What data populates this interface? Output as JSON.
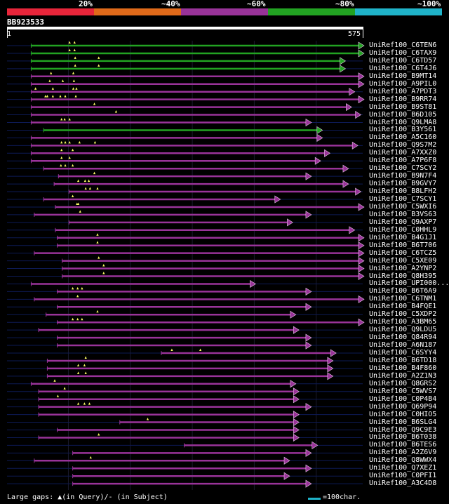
{
  "legend": {
    "colors": [
      "#e8253a",
      "#e06a1a",
      "#993399",
      "#22a322",
      "#1fb3c9"
    ],
    "labels": [
      "20%",
      "~40%",
      "~60%",
      "~80%",
      "~100%"
    ]
  },
  "query": {
    "name": "BB923533",
    "start": "1",
    "end": "575"
  },
  "footer": {
    "gaps_text": "Large gaps: ▲(in Query)/- (in Subject)",
    "scale_text": "=100char."
  },
  "hits": [
    {
      "name": "UniRef100_C6TEN6",
      "color": "green",
      "color_hex": "#22a322",
      "start": 40,
      "end": 575,
      "q_gaps": [
        102,
        110
      ]
    },
    {
      "name": "UniRef100_C6TAX9",
      "color": "green",
      "color_hex": "#22a322",
      "start": 40,
      "end": 575,
      "q_gaps": [
        102,
        110
      ]
    },
    {
      "name": "UniRef100_C6TD57",
      "color": "green",
      "color_hex": "#22a322",
      "start": 40,
      "end": 545,
      "q_gaps": [
        111,
        149
      ]
    },
    {
      "name": "UniRef100_C6T4J6",
      "color": "green",
      "color_hex": "#22a322",
      "start": 40,
      "end": 545,
      "q_gaps": [
        111,
        149
      ]
    },
    {
      "name": "UniRef100_B9MT14",
      "color": "purple",
      "color_hex": "#993399",
      "start": 40,
      "end": 575,
      "q_gaps": [
        72,
        108
      ]
    },
    {
      "name": "UniRef100_A9PIL0",
      "color": "purple",
      "color_hex": "#993399",
      "start": 40,
      "end": 575,
      "q_gaps": [
        70,
        91,
        109
      ]
    },
    {
      "name": "UniRef100_A7PDT3",
      "color": "purple",
      "color_hex": "#993399",
      "start": 40,
      "end": 560,
      "q_gaps": [
        47,
        75,
        108,
        113
      ]
    },
    {
      "name": "UniRef100_B9RR74",
      "color": "purple",
      "color_hex": "#993399",
      "start": 40,
      "end": 575,
      "q_gaps": [
        63,
        66,
        75,
        87,
        95,
        112
      ]
    },
    {
      "name": "UniRef100_B9ST81",
      "color": "purple",
      "color_hex": "#993399",
      "start": 40,
      "end": 555,
      "q_gaps": [
        142
      ]
    },
    {
      "name": "UniRef100_B6D105",
      "color": "purple",
      "color_hex": "#993399",
      "start": 40,
      "end": 570,
      "q_gaps": [
        177
      ]
    },
    {
      "name": "UniRef100_Q9LMA8",
      "color": "purple",
      "color_hex": "#993399",
      "start": 40,
      "end": 490,
      "q_gaps": [
        89,
        94,
        102
      ]
    },
    {
      "name": "UniRef100_B3Y561",
      "color": "green",
      "color_hex": "#22a322",
      "start": 60,
      "end": 508,
      "q_gaps": []
    },
    {
      "name": "UniRef100_A5C160",
      "color": "purple",
      "color_hex": "#993399",
      "start": 40,
      "end": 508,
      "q_gaps": []
    },
    {
      "name": "UniRef100_Q9S7M2",
      "color": "purple",
      "color_hex": "#993399",
      "start": 40,
      "end": 565,
      "q_gaps": [
        89,
        95,
        102,
        118,
        143
      ]
    },
    {
      "name": "UniRef100_A7XXZ0",
      "color": "purple",
      "color_hex": "#993399",
      "start": 40,
      "end": 520,
      "q_gaps": [
        89,
        107
      ]
    },
    {
      "name": "UniRef100_A7P6F8",
      "color": "purple",
      "color_hex": "#993399",
      "start": 40,
      "end": 505,
      "q_gaps": [
        89,
        102
      ]
    },
    {
      "name": "UniRef100_C7SCY2",
      "color": "purple",
      "color_hex": "#993399",
      "start": 60,
      "end": 550,
      "q_gaps": [
        88,
        95,
        107
      ]
    },
    {
      "name": "UniRef100_B9N7F4",
      "color": "purple",
      "color_hex": "#993399",
      "start": 84,
      "end": 490,
      "q_gaps": [
        142
      ]
    },
    {
      "name": "UniRef100_B9GVY7",
      "color": "purple",
      "color_hex": "#993399",
      "start": 77,
      "end": 550,
      "q_gaps": [
        116,
        127,
        133
      ]
    },
    {
      "name": "UniRef100_B8LFH2",
      "color": "purple",
      "color_hex": "#993399",
      "start": 101,
      "end": 570,
      "q_gaps": [
        128,
        135,
        147
      ]
    },
    {
      "name": "UniRef100_C7SCY1",
      "color": "purple",
      "color_hex": "#993399",
      "start": 60,
      "end": 440,
      "q_gaps": [
        107
      ]
    },
    {
      "name": "UniRef100_C5WXI6",
      "color": "purple",
      "color_hex": "#993399",
      "start": 79,
      "end": 575,
      "q_gaps": [
        114,
        116
      ]
    },
    {
      "name": "UniRef100_B3VS63",
      "color": "purple",
      "color_hex": "#993399",
      "start": 45,
      "end": 490,
      "q_gaps": [
        119
      ]
    },
    {
      "name": "UniRef100_Q9AXP7",
      "color": "purple",
      "color_hex": "#993399",
      "start": 101,
      "end": 460,
      "q_gaps": []
    },
    {
      "name": "UniRef100_C0HHL9",
      "color": "purple",
      "color_hex": "#993399",
      "start": 79,
      "end": 560,
      "q_gaps": []
    },
    {
      "name": "UniRef100_B4G1J1",
      "color": "purple",
      "color_hex": "#993399",
      "start": 82,
      "end": 575,
      "q_gaps": [
        147
      ]
    },
    {
      "name": "UniRef100_B6T706",
      "color": "purple",
      "color_hex": "#993399",
      "start": 82,
      "end": 575,
      "q_gaps": [
        147
      ]
    },
    {
      "name": "UniRef100_C6TCZ5",
      "color": "purple",
      "color_hex": "#993399",
      "start": 45,
      "end": 575,
      "q_gaps": []
    },
    {
      "name": "UniRef100_C5XE09",
      "color": "purple",
      "color_hex": "#993399",
      "start": 90,
      "end": 575,
      "q_gaps": [
        149
      ]
    },
    {
      "name": "UniRef100_A2YNP2",
      "color": "purple",
      "color_hex": "#993399",
      "start": 90,
      "end": 575,
      "q_gaps": [
        157
      ]
    },
    {
      "name": "UniRef100_Q8H395",
      "color": "purple",
      "color_hex": "#993399",
      "start": 90,
      "end": 575,
      "q_gaps": [
        157
      ]
    },
    {
      "name": "UniRef100_UPI000...",
      "color": "purple",
      "color_hex": "#993399",
      "start": 40,
      "end": 400,
      "q_gaps": []
    },
    {
      "name": "UniRef100_B6T6A9",
      "color": "purple",
      "color_hex": "#993399",
      "start": 82,
      "end": 490,
      "q_gaps": [
        107,
        115,
        122
      ]
    },
    {
      "name": "UniRef100_C6TNM1",
      "color": "purple",
      "color_hex": "#993399",
      "start": 45,
      "end": 575,
      "q_gaps": [
        115
      ]
    },
    {
      "name": "UniRef100_B4FQE1",
      "color": "purple",
      "color_hex": "#993399",
      "start": 82,
      "end": 490,
      "q_gaps": []
    },
    {
      "name": "UniRef100_C5XDP2",
      "color": "purple",
      "color_hex": "#993399",
      "start": 64,
      "end": 465,
      "q_gaps": [
        147
      ]
    },
    {
      "name": "UniRef100_A3BM65",
      "color": "purple",
      "color_hex": "#993399",
      "start": 82,
      "end": 575,
      "q_gaps": [
        107,
        115,
        122
      ]
    },
    {
      "name": "UniRef100_Q9LDU5",
      "color": "purple",
      "color_hex": "#993399",
      "start": 52,
      "end": 470,
      "q_gaps": []
    },
    {
      "name": "UniRef100_Q84R94",
      "color": "purple",
      "color_hex": "#993399",
      "start": 82,
      "end": 490,
      "q_gaps": []
    },
    {
      "name": "UniRef100_A6N187",
      "color": "purple",
      "color_hex": "#993399",
      "start": 82,
      "end": 490,
      "q_gaps": []
    },
    {
      "name": "UniRef100_C6SYY4",
      "color": "purple",
      "color_hex": "#993399",
      "start": 250,
      "end": 530,
      "q_gaps": [
        267,
        313
      ]
    },
    {
      "name": "UniRef100_B6TD18",
      "color": "purple",
      "color_hex": "#993399",
      "start": 66,
      "end": 525,
      "q_gaps": [
        128
      ]
    },
    {
      "name": "UniRef100_B4F860",
      "color": "purple",
      "color_hex": "#993399",
      "start": 66,
      "end": 525,
      "q_gaps": [
        116,
        126
      ]
    },
    {
      "name": "UniRef100_A2Z1N3",
      "color": "purple",
      "color_hex": "#993399",
      "start": 66,
      "end": 525,
      "q_gaps": [
        116,
        128
      ]
    },
    {
      "name": "UniRef100_Q8GRS2",
      "color": "purple",
      "color_hex": "#993399",
      "start": 40,
      "end": 465,
      "q_gaps": [
        78
      ]
    },
    {
      "name": "UniRef100_C5WVS7",
      "color": "purple",
      "color_hex": "#993399",
      "start": 52,
      "end": 470,
      "q_gaps": [
        94
      ]
    },
    {
      "name": "UniRef100_C0P4B4",
      "color": "purple",
      "color_hex": "#993399",
      "start": 52,
      "end": 470,
      "q_gaps": [
        83
      ]
    },
    {
      "name": "UniRef100_Q69P94",
      "color": "purple",
      "color_hex": "#993399",
      "start": 52,
      "end": 490,
      "q_gaps": [
        116,
        126,
        134
      ]
    },
    {
      "name": "UniRef100_C0HIO5",
      "color": "purple",
      "color_hex": "#993399",
      "start": 52,
      "end": 470,
      "q_gaps": []
    },
    {
      "name": "UniRef100_B6SLG4",
      "color": "purple",
      "color_hex": "#993399",
      "start": 183,
      "end": 470,
      "q_gaps": [
        228
      ]
    },
    {
      "name": "UniRef100_Q9C9E3",
      "color": "purple",
      "color_hex": "#993399",
      "start": 82,
      "end": 470,
      "q_gaps": []
    },
    {
      "name": "UniRef100_B6T038",
      "color": "purple",
      "color_hex": "#993399",
      "start": 52,
      "end": 470,
      "q_gaps": [
        149
      ]
    },
    {
      "name": "UniRef100_B6TES6",
      "color": "purple",
      "color_hex": "#993399",
      "start": 287,
      "end": 500,
      "q_gaps": []
    },
    {
      "name": "UniRef100_A2Z6V9",
      "color": "purple",
      "color_hex": "#993399",
      "start": 107,
      "end": 490,
      "q_gaps": []
    },
    {
      "name": "UniRef100_Q8WWX4",
      "color": "purple",
      "color_hex": "#993399",
      "start": 45,
      "end": 455,
      "q_gaps": [
        136
      ]
    },
    {
      "name": "UniRef100_Q7XEZ1",
      "color": "purple",
      "color_hex": "#993399",
      "start": 107,
      "end": 490,
      "q_gaps": []
    },
    {
      "name": "UniRef100_C0PFI1",
      "color": "purple",
      "color_hex": "#993399",
      "start": 107,
      "end": 455,
      "q_gaps": []
    },
    {
      "name": "UniRef100_A3C4D8",
      "color": "purple",
      "color_hex": "#993399",
      "start": 107,
      "end": 490,
      "q_gaps": []
    }
  ]
}
